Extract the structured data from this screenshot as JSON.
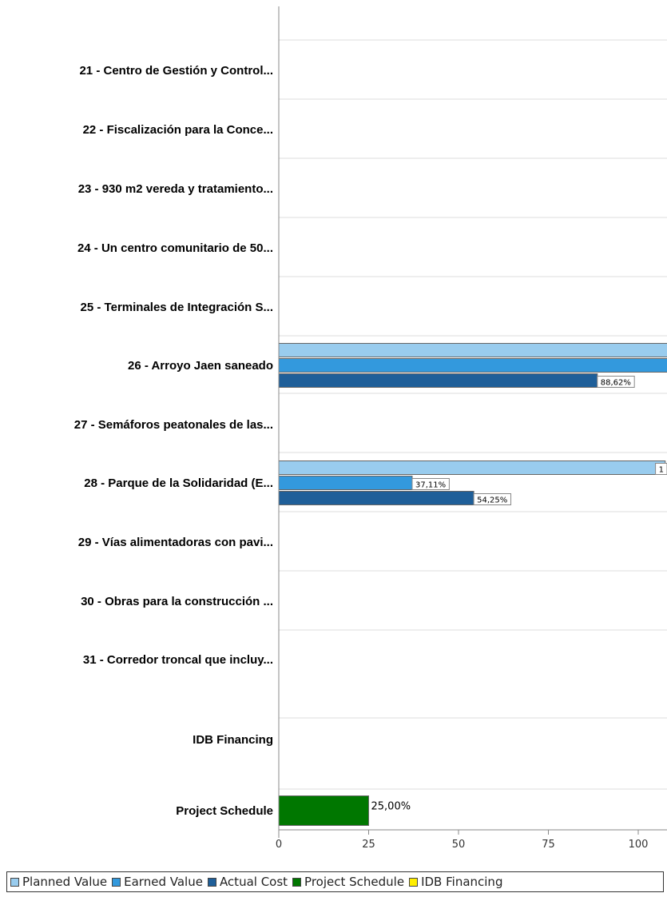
{
  "chart_data": {
    "type": "bar",
    "orientation": "horizontal",
    "categories": [
      "21 - Centro de Gestión y Control...",
      "22 - Fiscalización para la Conce...",
      "23 - 930 m2 vereda y tratamiento...",
      "24 - Un centro comunitario de 50...",
      "25 - Terminales de Integración S...",
      "26 - Arroyo Jaen saneado",
      "27 - Semáforos peatonales de las...",
      "28 - Parque de la Solidaridad (E...",
      "29 - Vías alimentadoras con pavi...",
      "30 - Obras para la construcción ...",
      "31 - Corredor troncal que incluy...",
      "IDB Financing",
      "Project Schedule"
    ],
    "series": [
      {
        "name": "Planned Value",
        "color": "#99ccee",
        "values": [
          null,
          null,
          null,
          null,
          null,
          120,
          null,
          107.5,
          null,
          null,
          null,
          null,
          null
        ],
        "labels": [
          "",
          "",
          "",
          "",
          "",
          "",
          "",
          "1",
          "",
          "",
          "",
          "",
          ""
        ]
      },
      {
        "name": "Earned Value",
        "color": "#3399dd",
        "values": [
          null,
          null,
          null,
          null,
          null,
          120,
          null,
          37.11,
          null,
          null,
          null,
          null,
          null
        ],
        "labels": [
          "",
          "",
          "",
          "",
          "",
          "",
          "",
          "37,11%",
          "",
          "",
          "",
          "",
          ""
        ]
      },
      {
        "name": "Actual Cost",
        "color": "#1f5f99",
        "values": [
          null,
          null,
          null,
          null,
          null,
          88.62,
          null,
          54.25,
          null,
          null,
          null,
          null,
          null
        ],
        "labels": [
          "",
          "",
          "",
          "",
          "",
          "88,62%",
          "",
          "54,25%",
          "",
          "",
          "",
          "",
          ""
        ]
      },
      {
        "name": "Project Schedule",
        "color": "#007700",
        "values": [
          null,
          null,
          null,
          null,
          null,
          null,
          null,
          null,
          null,
          null,
          null,
          null,
          25
        ],
        "labels": [
          "",
          "",
          "",
          "",
          "",
          "",
          "",
          "",
          "",
          "",
          "",
          "",
          "25,00%"
        ]
      },
      {
        "name": "IDB Financing",
        "color": "#ffee00",
        "values": [
          null,
          null,
          null,
          null,
          null,
          null,
          null,
          null,
          null,
          null,
          null,
          null,
          null
        ],
        "labels": [
          "",
          "",
          "",
          "",
          "",
          "",
          "",
          "",
          "",
          "",
          "",
          "",
          ""
        ]
      }
    ],
    "xticks": [
      0,
      25,
      50,
      75,
      100
    ],
    "xtick_labels": [
      "0",
      "25",
      "50",
      "75",
      "100"
    ],
    "xlim": [
      0,
      108
    ],
    "grid": "horizontal-lines",
    "legend_position": "bottom",
    "title": "",
    "xlabel": "",
    "ylabel": ""
  }
}
